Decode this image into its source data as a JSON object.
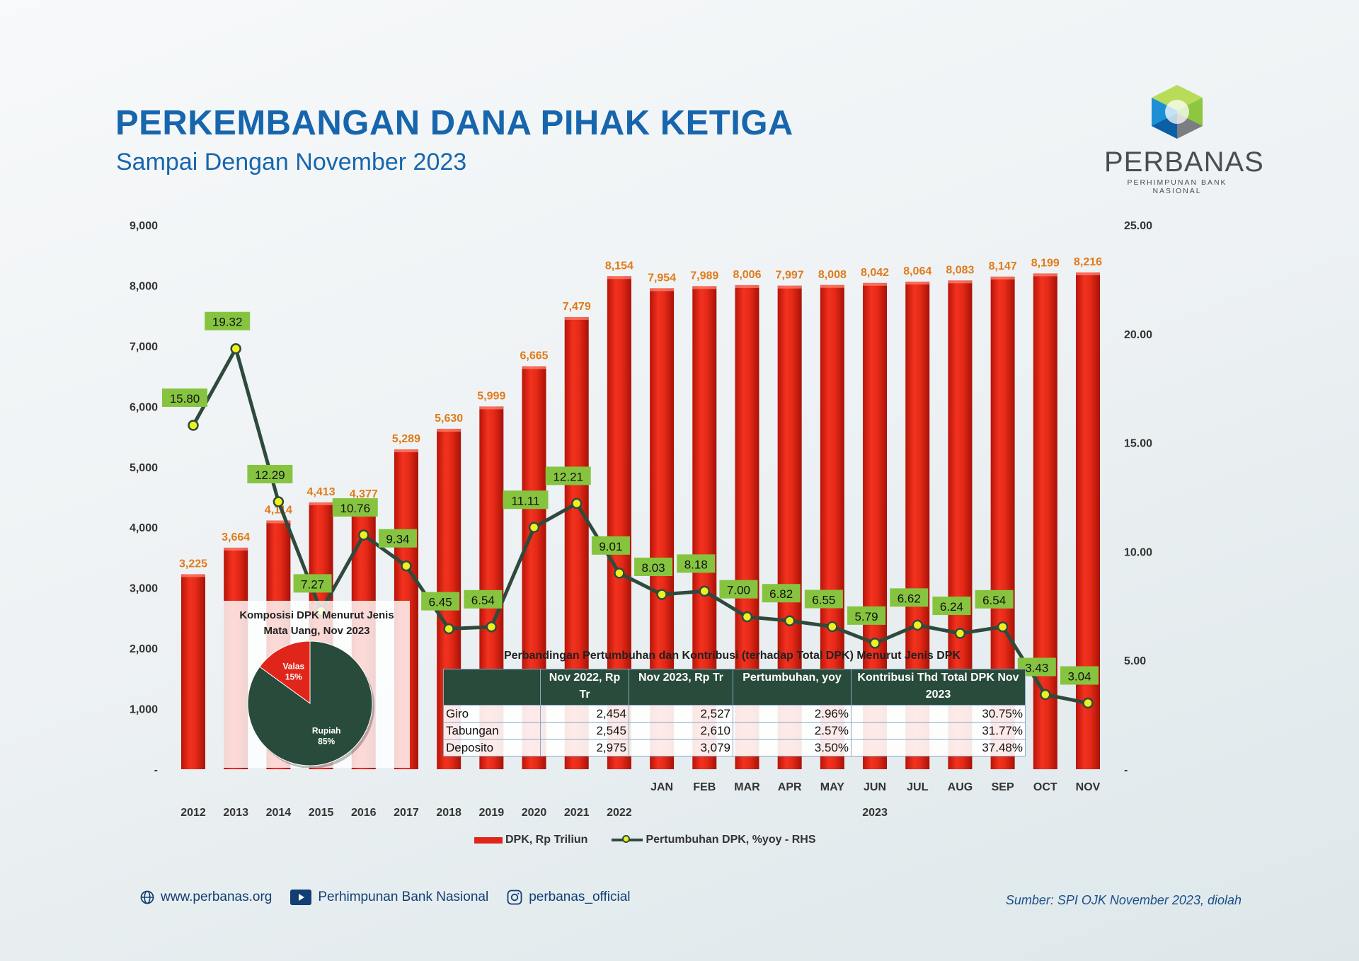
{
  "header": {
    "title": "PERKEMBANGAN DANA PIHAK KETIGA",
    "subtitle": "Sampai Dengan November 2023"
  },
  "logo": {
    "name": "PERBANAS",
    "tagline": "PERHIMPUNAN BANK NASIONAL",
    "colors": [
      "#8dc63f",
      "#1d8fd6",
      "#0b5fa5",
      "#7a7d82"
    ]
  },
  "chart_data": {
    "type": "bar+line",
    "categories": [
      "2012",
      "2013",
      "2014",
      "2015",
      "2016",
      "2017",
      "2018",
      "2019",
      "2020",
      "2021",
      "2022",
      "JAN",
      "FEB",
      "MAR",
      "APR",
      "MAY",
      "JUN",
      "JUL",
      "AUG",
      "SEP",
      "OCT",
      "NOV"
    ],
    "year_group_label": "2023",
    "series": [
      {
        "name": "DPK, Rp Triliun",
        "type": "bar",
        "axis": "left",
        "color": "#e0261a",
        "label_color": "#e07b1a",
        "values": [
          3225,
          3664,
          4114,
          4413,
          4377,
          5289,
          5630,
          5999,
          6665,
          7479,
          8154,
          7954,
          7989,
          8006,
          7997,
          8008,
          8042,
          8064,
          8083,
          8147,
          8199,
          8216
        ],
        "labels": [
          "3,225",
          "3,664",
          "4,114",
          "4,413",
          "4,377",
          "5,289",
          "5,630",
          "5,999",
          "6,665",
          "7,479",
          "8,154",
          "7,954",
          "7,989",
          "8,006",
          "7,997",
          "8,008",
          "8,042",
          "8,064",
          "8,083",
          "8,147",
          "8,199",
          "8,216"
        ]
      },
      {
        "name": "Pertumbuhan DPK, %yoy - RHS",
        "type": "line",
        "axis": "right",
        "color": "#2f4a3c",
        "marker_color": "#f0f020",
        "label_bg": "#86c440",
        "values": [
          15.8,
          19.32,
          12.29,
          7.27,
          10.76,
          9.34,
          6.45,
          6.54,
          11.11,
          12.21,
          9.01,
          8.03,
          8.18,
          7.0,
          6.82,
          6.55,
          5.79,
          6.62,
          6.24,
          6.54,
          3.43,
          3.04
        ],
        "labels": [
          "15.80",
          "19.32",
          "12.29",
          "7.27",
          "10.76",
          "9.34",
          "6.45",
          "6.54",
          "11.11",
          "12.21",
          "9.01",
          "8.03",
          "8.18",
          "7.00",
          "6.82",
          "6.55",
          "5.79",
          "6.62",
          "6.24",
          "6.54",
          "3.43",
          "3.04"
        ]
      }
    ],
    "ylim_left": [
      0,
      9000
    ],
    "yticks_left": [
      "-",
      "1,000",
      "2,000",
      "3,000",
      "4,000",
      "5,000",
      "6,000",
      "7,000",
      "8,000",
      "9,000"
    ],
    "ylim_right": [
      0,
      25
    ],
    "yticks_right": [
      "-",
      "5.00",
      "10.00",
      "15.00",
      "20.00",
      "25.00"
    ],
    "grid": false,
    "legend_position": "bottom"
  },
  "pie": {
    "title_line1": "Komposisi DPK Menurut Jenis",
    "title_line2": "Mata Uang, Nov 2023",
    "slices": [
      {
        "name": "Valas",
        "label": "15%",
        "value": 15,
        "color": "#e0261a"
      },
      {
        "name": "Rupiah",
        "label": "85%",
        "value": 85,
        "color": "#284b3b"
      }
    ]
  },
  "table": {
    "title": "Perbandingan Pertumbuhan dan Kontribusi (terhadap Total DPK) Menurut Jenis DPK",
    "headers": [
      "",
      "Nov 2022, Rp Tr",
      "Nov 2023, Rp Tr",
      "Pertumbuhan, yoy",
      "Kontribusi Thd Total DPK Nov 2023"
    ],
    "rows": [
      [
        "Giro",
        "2,454",
        "2,527",
        "2.96%",
        "30.75%"
      ],
      [
        "Tabungan",
        "2,545",
        "2,610",
        "2.57%",
        "31.77%"
      ],
      [
        "Deposito",
        "2,975",
        "3,079",
        "3.50%",
        "37.48%"
      ]
    ]
  },
  "legend": {
    "bar": "DPK, Rp Triliun",
    "line": "Pertumbuhan DPK, %yoy - RHS"
  },
  "footer": {
    "website": "www.perbanas.org",
    "youtube": "Perhimpunan Bank Nasional",
    "instagram": "perbanas_official",
    "source": "Sumber: SPI OJK November 2023, diolah"
  }
}
